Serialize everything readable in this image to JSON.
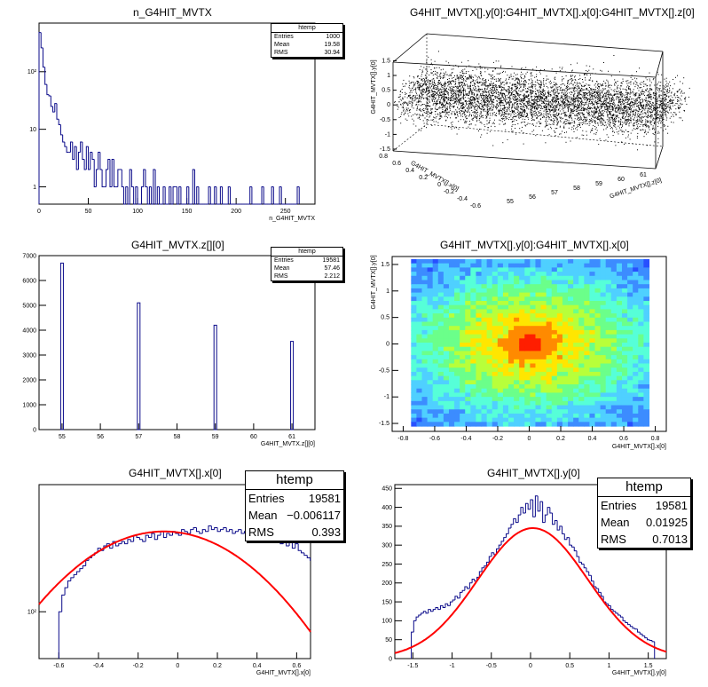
{
  "colors": {
    "hist": "#0b0b8a",
    "fit": "#ff0000",
    "axis": "#000000"
  },
  "panels": [
    {
      "id": "p1",
      "title": "n_G4HIT_MVTX",
      "stats": {
        "name": "htemp",
        "rows": [
          [
            "Entries",
            "1000"
          ],
          [
            "Mean",
            "19.58"
          ],
          [
            "RMS",
            "30.94"
          ]
        ]
      },
      "chart_data": {
        "type": "histogram",
        "title": "n_G4HIT_MVTX",
        "xlabel": "n_G4HIT_MVTX",
        "xlim": [
          0,
          280
        ],
        "ylog": true,
        "ylim": [
          0.5,
          700
        ],
        "xticks": [
          "0",
          "50",
          "100",
          "150",
          "200",
          "250"
        ],
        "yticks": [
          "1",
          "10",
          "10²"
        ],
        "bin_width": 2,
        "values": [
          480,
          260,
          120,
          60,
          40,
          38,
          25,
          20,
          28,
          15,
          12,
          8,
          6,
          5,
          4,
          4,
          6,
          3,
          5,
          2,
          4,
          6,
          3,
          2,
          5,
          2,
          4,
          3,
          1,
          2,
          4,
          2,
          1,
          1,
          2,
          3,
          1,
          3,
          1,
          1,
          2,
          2,
          1,
          0,
          1,
          0,
          2,
          1,
          0,
          1,
          0,
          0,
          1,
          2,
          1,
          0,
          1,
          0,
          2,
          0,
          1,
          0,
          0,
          1,
          0,
          0,
          1,
          0,
          1,
          1,
          0,
          1,
          0,
          0,
          0,
          1,
          0,
          0,
          2,
          0,
          1,
          0,
          0,
          0,
          0,
          0,
          1,
          0,
          0,
          1,
          0,
          0,
          1,
          0,
          0,
          0,
          1,
          0,
          0,
          0,
          0,
          0,
          0,
          0,
          0,
          0,
          0,
          1,
          0,
          0,
          0,
          0,
          0,
          1,
          0,
          0,
          0,
          0,
          1,
          0,
          0,
          0,
          1,
          0,
          0,
          0,
          0,
          0,
          0,
          0,
          0,
          1
        ]
      }
    },
    {
      "id": "p2",
      "title": "G4HIT_MVTX[].y[0]:G4HIT_MVTX[].x[0]:G4HIT_MVTX[].z[0]",
      "chart_data": {
        "type": "scatter",
        "title": "G4HIT_MVTX[].y[0]:G4HIT_MVTX[].x[0]:G4HIT_MVTX[].z[0]",
        "projection": "3d",
        "axes": {
          "vertical": {
            "label": "G4HIT_MVTX[].y[0]",
            "ticks": [
              "-1.5",
              "-1",
              "-0.5",
              "0",
              "0.5",
              "1",
              "1.5"
            ]
          },
          "left_depth": {
            "label": "G4HIT_MVTX[].x[0]",
            "ticks": [
              "0.8",
              "0.6",
              "0.4",
              "0.2",
              "0",
              "-0.2",
              "-0.4",
              "-0.6"
            ]
          },
          "right_depth": {
            "label": "G4HIT_MVTX[].z[0]",
            "ticks": [
              "55",
              "56",
              "57",
              "58",
              "59",
              "60",
              "61"
            ]
          }
        },
        "ranges": {
          "x": [
            -0.8,
            0.8
          ],
          "y": [
            -1.6,
            1.6
          ],
          "z": [
            55,
            61
          ]
        }
      }
    },
    {
      "id": "p3",
      "title": "G4HIT_MVTX.z[][0]",
      "stats": {
        "name": "htemp",
        "rows": [
          [
            "Entries",
            "19581"
          ],
          [
            "Mean",
            "57.46"
          ],
          [
            "RMS",
            "2.212"
          ]
        ]
      },
      "chart_data": {
        "type": "histogram",
        "title": "G4HIT_MVTX.z[][0]",
        "xlabel": "G4HIT_MVTX.z[][0]",
        "xlim": [
          54.4,
          61.6
        ],
        "ylim": [
          0,
          7000
        ],
        "xticks": [
          "55",
          "56",
          "57",
          "58",
          "59",
          "60",
          "61"
        ],
        "yticks": [
          "0",
          "1000",
          "2000",
          "3000",
          "4000",
          "5000",
          "6000",
          "7000"
        ],
        "bins": [
          {
            "x": 55.0,
            "value": 6700
          },
          {
            "x": 57.0,
            "value": 5100
          },
          {
            "x": 59.0,
            "value": 4200
          },
          {
            "x": 61.0,
            "value": 3550
          }
        ]
      }
    },
    {
      "id": "p4",
      "title": "G4HIT_MVTX[].y[0]:G4HIT_MVTX[].x[0]",
      "chart_data": {
        "type": "heatmap",
        "title": "G4HIT_MVTX[].y[0]:G4HIT_MVTX[].x[0]",
        "xlabel": "G4HIT_MVTX[].x[0]",
        "ylabel": "G4HIT_MVTX[].y[0]",
        "xlim": [
          -0.87,
          0.87
        ],
        "ylim": [
          -1.65,
          1.65
        ],
        "xticks": [
          "-0.8",
          "-0.6",
          "-0.4",
          "-0.2",
          "0",
          "0.2",
          "0.4",
          "0.6",
          "0.8"
        ],
        "yticks": [
          "-1.5",
          "-1",
          "-0.5",
          "0",
          "0.5",
          "1",
          "1.5"
        ],
        "data_extent": {
          "x": [
            -0.75,
            0.76
          ],
          "y": [
            -1.55,
            1.6
          ]
        },
        "peak": {
          "x": 0.0,
          "y": 0.0
        }
      }
    },
    {
      "id": "p5",
      "title": "G4HIT_MVTX[].x[0]",
      "stats": {
        "name": "htemp",
        "rows": [
          [
            "Entries",
            "19581"
          ],
          [
            "Mean",
            "−0.006117"
          ],
          [
            "RMS",
            "0.393"
          ]
        ]
      },
      "chart_data": {
        "type": "histogram",
        "title": "G4HIT_MVTX[].x[0]",
        "xlabel": "G4HIT_MVTX[].x[0]",
        "xlim": [
          -0.7,
          0.67
        ],
        "ylog": true,
        "ylim": [
          60,
          400
        ],
        "xticks": [
          "-0.6",
          "-0.4",
          "-0.2",
          "0",
          "0.2",
          "0.4",
          "0.6"
        ],
        "yticks": [
          "10²"
        ],
        "bin_width": 0.0151,
        "x_start": -0.6,
        "values": [
          100,
          120,
          130,
          140,
          145,
          150,
          155,
          160,
          165,
          175,
          180,
          185,
          190,
          200,
          195,
          205,
          210,
          200,
          215,
          205,
          210,
          215,
          210,
          220,
          215,
          230,
          225,
          220,
          215,
          230,
          225,
          235,
          220,
          230,
          240,
          225,
          235,
          230,
          240,
          235,
          230,
          245,
          240,
          235,
          245,
          250,
          240,
          235,
          245,
          240,
          255,
          245,
          250,
          240,
          245,
          250,
          240,
          245,
          235,
          240,
          245,
          235,
          240,
          230,
          235,
          225,
          230,
          220,
          235,
          225,
          220,
          230,
          215,
          220,
          210,
          220,
          205,
          215,
          200,
          210,
          195,
          190,
          185,
          180,
          175,
          170,
          165,
          150,
          140,
          125,
          110
        ],
        "fit": {
          "type": "gaussian",
          "mean": -0.07,
          "sigma": 0.5,
          "amplitude": 240
        }
      }
    },
    {
      "id": "p6",
      "title": "G4HIT_MVTX[].y[0]",
      "stats": {
        "name": "htemp",
        "rows": [
          [
            "Entries",
            "19581"
          ],
          [
            "Mean",
            "0.01925"
          ],
          [
            "RMS",
            "0.7013"
          ]
        ]
      },
      "chart_data": {
        "type": "histogram",
        "title": "G4HIT_MVTX[].y[0]",
        "xlabel": "G4HIT_MVTX[].y[0]",
        "xlim": [
          -1.73,
          1.73
        ],
        "ylim": [
          0,
          460
        ],
        "xticks": [
          "-1.5",
          "-1",
          "-0.5",
          "0",
          "0.5",
          "1",
          "1.5"
        ],
        "yticks": [
          "0",
          "50",
          "100",
          "150",
          "200",
          "250",
          "300",
          "350",
          "400",
          "450"
        ],
        "bin_width": 0.031,
        "x_start": -1.52,
        "values": [
          70,
          100,
          110,
          115,
          120,
          125,
          120,
          130,
          125,
          130,
          135,
          130,
          140,
          135,
          145,
          140,
          150,
          155,
          165,
          160,
          175,
          180,
          190,
          185,
          200,
          210,
          205,
          215,
          230,
          240,
          245,
          255,
          270,
          280,
          275,
          290,
          300,
          310,
          320,
          330,
          345,
          355,
          370,
          360,
          380,
          400,
          385,
          410,
          395,
          420,
          375,
          430,
          390,
          415,
          360,
          380,
          400,
          385,
          355,
          365,
          340,
          350,
          330,
          315,
          320,
          300,
          295,
          285,
          270,
          255,
          250,
          240,
          230,
          220,
          205,
          190,
          185,
          175,
          165,
          150,
          145,
          140,
          130,
          125,
          120,
          115,
          110,
          100,
          95,
          90,
          85,
          80,
          78,
          70,
          65,
          60,
          55,
          50,
          48,
          45
        ],
        "fit": {
          "type": "gaussian",
          "mean": 0.03,
          "sigma": 0.7,
          "amplitude": 345
        }
      }
    }
  ]
}
